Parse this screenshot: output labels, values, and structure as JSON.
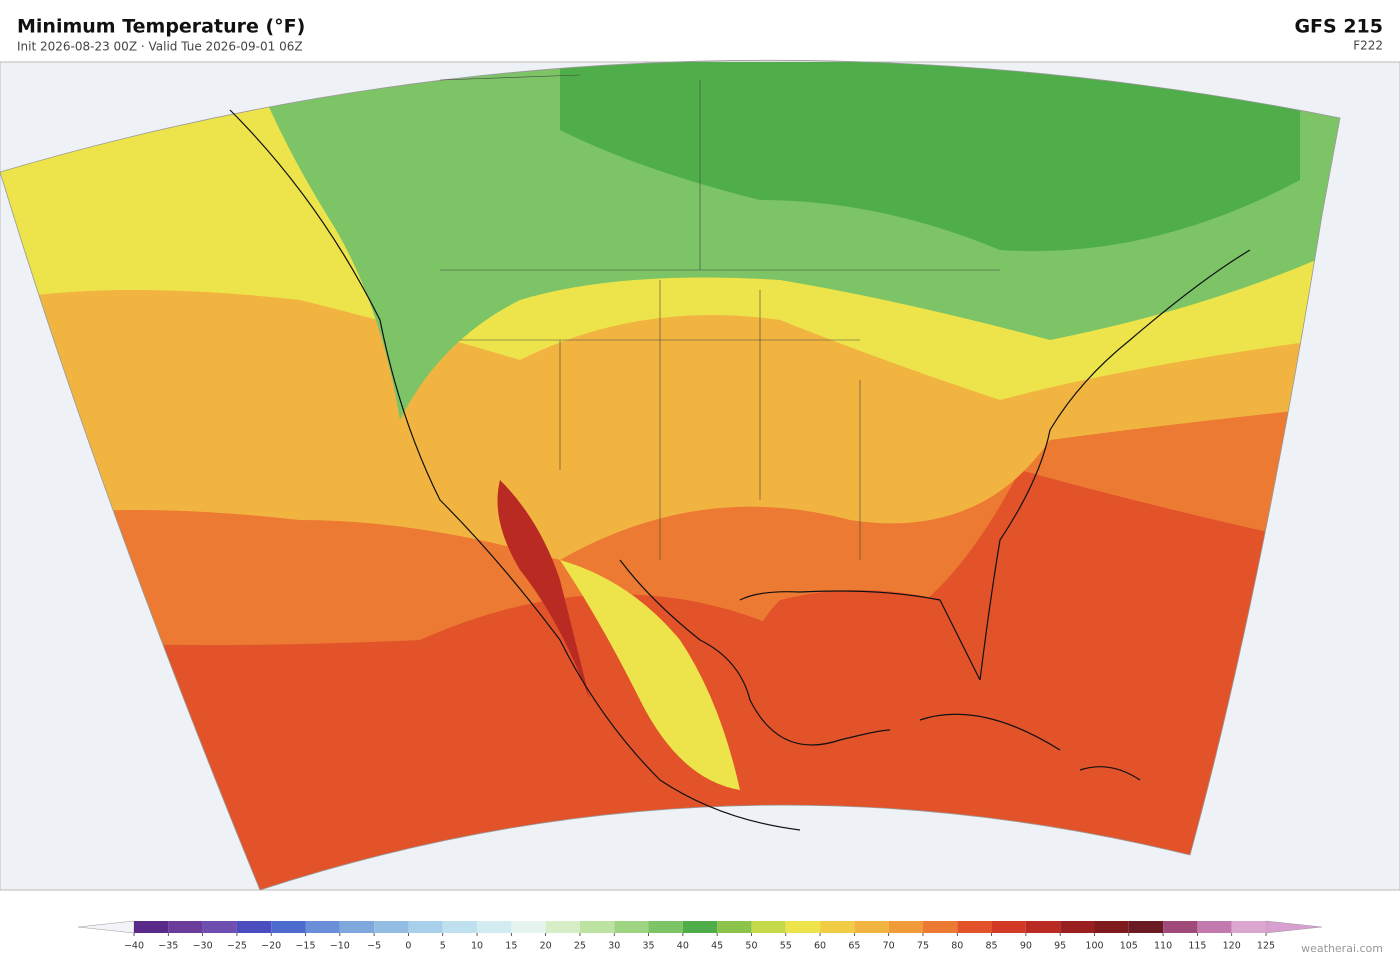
{
  "header": {
    "title": "Minimum Temperature  (°F)",
    "subtitle": "Init 2026-08-23 00Z  ·  Valid Tue 2026-09-01 06Z",
    "model": "GFS  215",
    "forecast_hour": "F222"
  },
  "colorbar": {
    "ticks": [
      {
        "value": -40,
        "label": "−40"
      },
      {
        "value": -35,
        "label": "−35"
      },
      {
        "value": -30,
        "label": "−30"
      },
      {
        "value": -25,
        "label": "−25"
      },
      {
        "value": -20,
        "label": "−20"
      },
      {
        "value": -15,
        "label": "−15"
      },
      {
        "value": -10,
        "label": "−10"
      },
      {
        "value": -5,
        "label": "−5"
      },
      0,
      5,
      10,
      15,
      20,
      25,
      30,
      35,
      40,
      45,
      50,
      55,
      60,
      65,
      70,
      75,
      80,
      85,
      90,
      95,
      100,
      105,
      110,
      115,
      120,
      125
    ],
    "colors": [
      "#5a2a8a",
      "#6a3d9a",
      "#6e4fb0",
      "#4b4dbf",
      "#4d6bcf",
      "#6a8fd8",
      "#7ea7dc",
      "#93bce3",
      "#a8d0ea",
      "#bfe0ef",
      "#d3ecf2",
      "#e6f4ef",
      "#d6edc8",
      "#bde3a2",
      "#9ed482",
      "#7cc466",
      "#4fae4a",
      "#8cc34a",
      "#c6d94a",
      "#ece44a",
      "#f2cc45",
      "#f2b440",
      "#f09a3a",
      "#ec7a32",
      "#e2532a",
      "#d23a25",
      "#b82a22",
      "#9a1f1f",
      "#7f1a1e",
      "#6a1a22",
      "#a04a7a",
      "#c27aae",
      "#dba6cf"
    ],
    "under_color": "#f4f4f8",
    "over_color": "#d8a0d0"
  },
  "footer": {
    "credit": "weatherai.com"
  }
}
